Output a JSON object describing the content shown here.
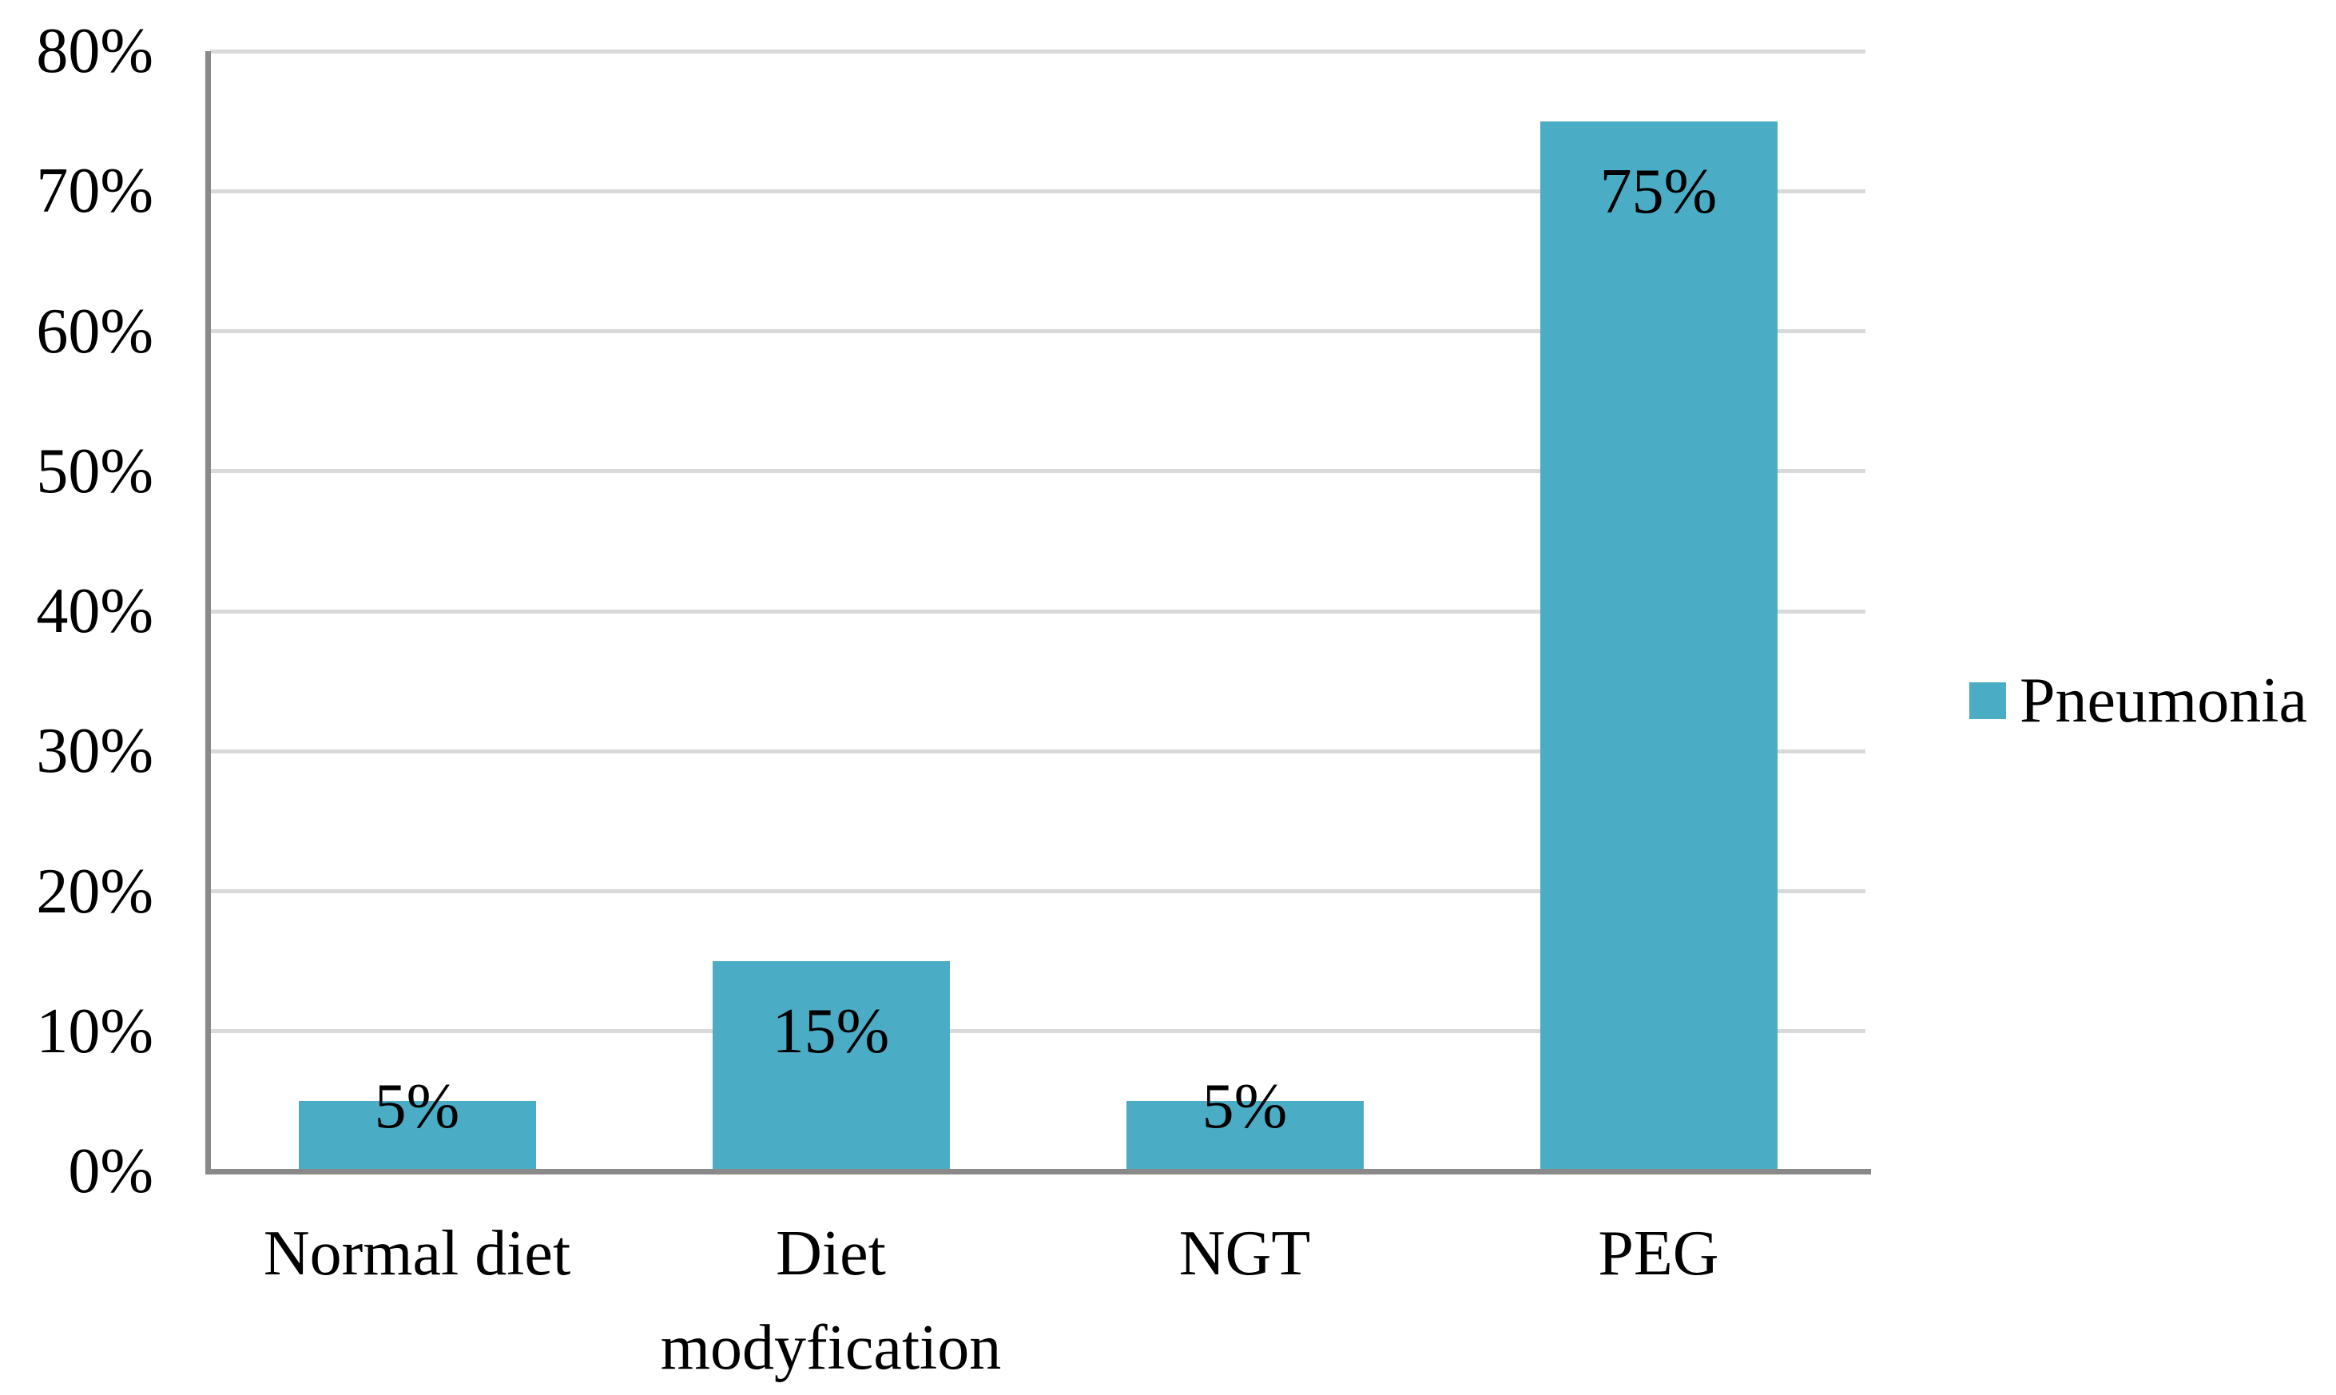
{
  "chart_data": {
    "type": "bar",
    "title": "",
    "categories": [
      "Normal diet",
      "Diet modyfication",
      "NGT",
      "PEG"
    ],
    "series": [
      {
        "name": "Pneumonia",
        "values": [
          5,
          15,
          5,
          75
        ]
      }
    ],
    "data_labels": [
      "5%",
      "15%",
      "5%",
      "75%"
    ],
    "y_axis": {
      "min": 0,
      "max": 80,
      "step": 10,
      "tick_labels": [
        "0%",
        "10%",
        "20%",
        "30%",
        "40%",
        "50%",
        "60%",
        "70%",
        "80%"
      ]
    },
    "x_axis": {
      "tick_labels": [
        "Normal diet",
        "Diet modyfication",
        "NGT",
        "PEG"
      ]
    },
    "legend": {
      "position": "right",
      "label": "Pneumonia",
      "swatch_color": "#4BACC6"
    },
    "grid": true,
    "colors": {
      "bar_fill": "#4BACC6",
      "axis_line": "#898989",
      "gridline": "#D9D9D9",
      "text": "#000000",
      "background": "#FFFFFF"
    }
  }
}
